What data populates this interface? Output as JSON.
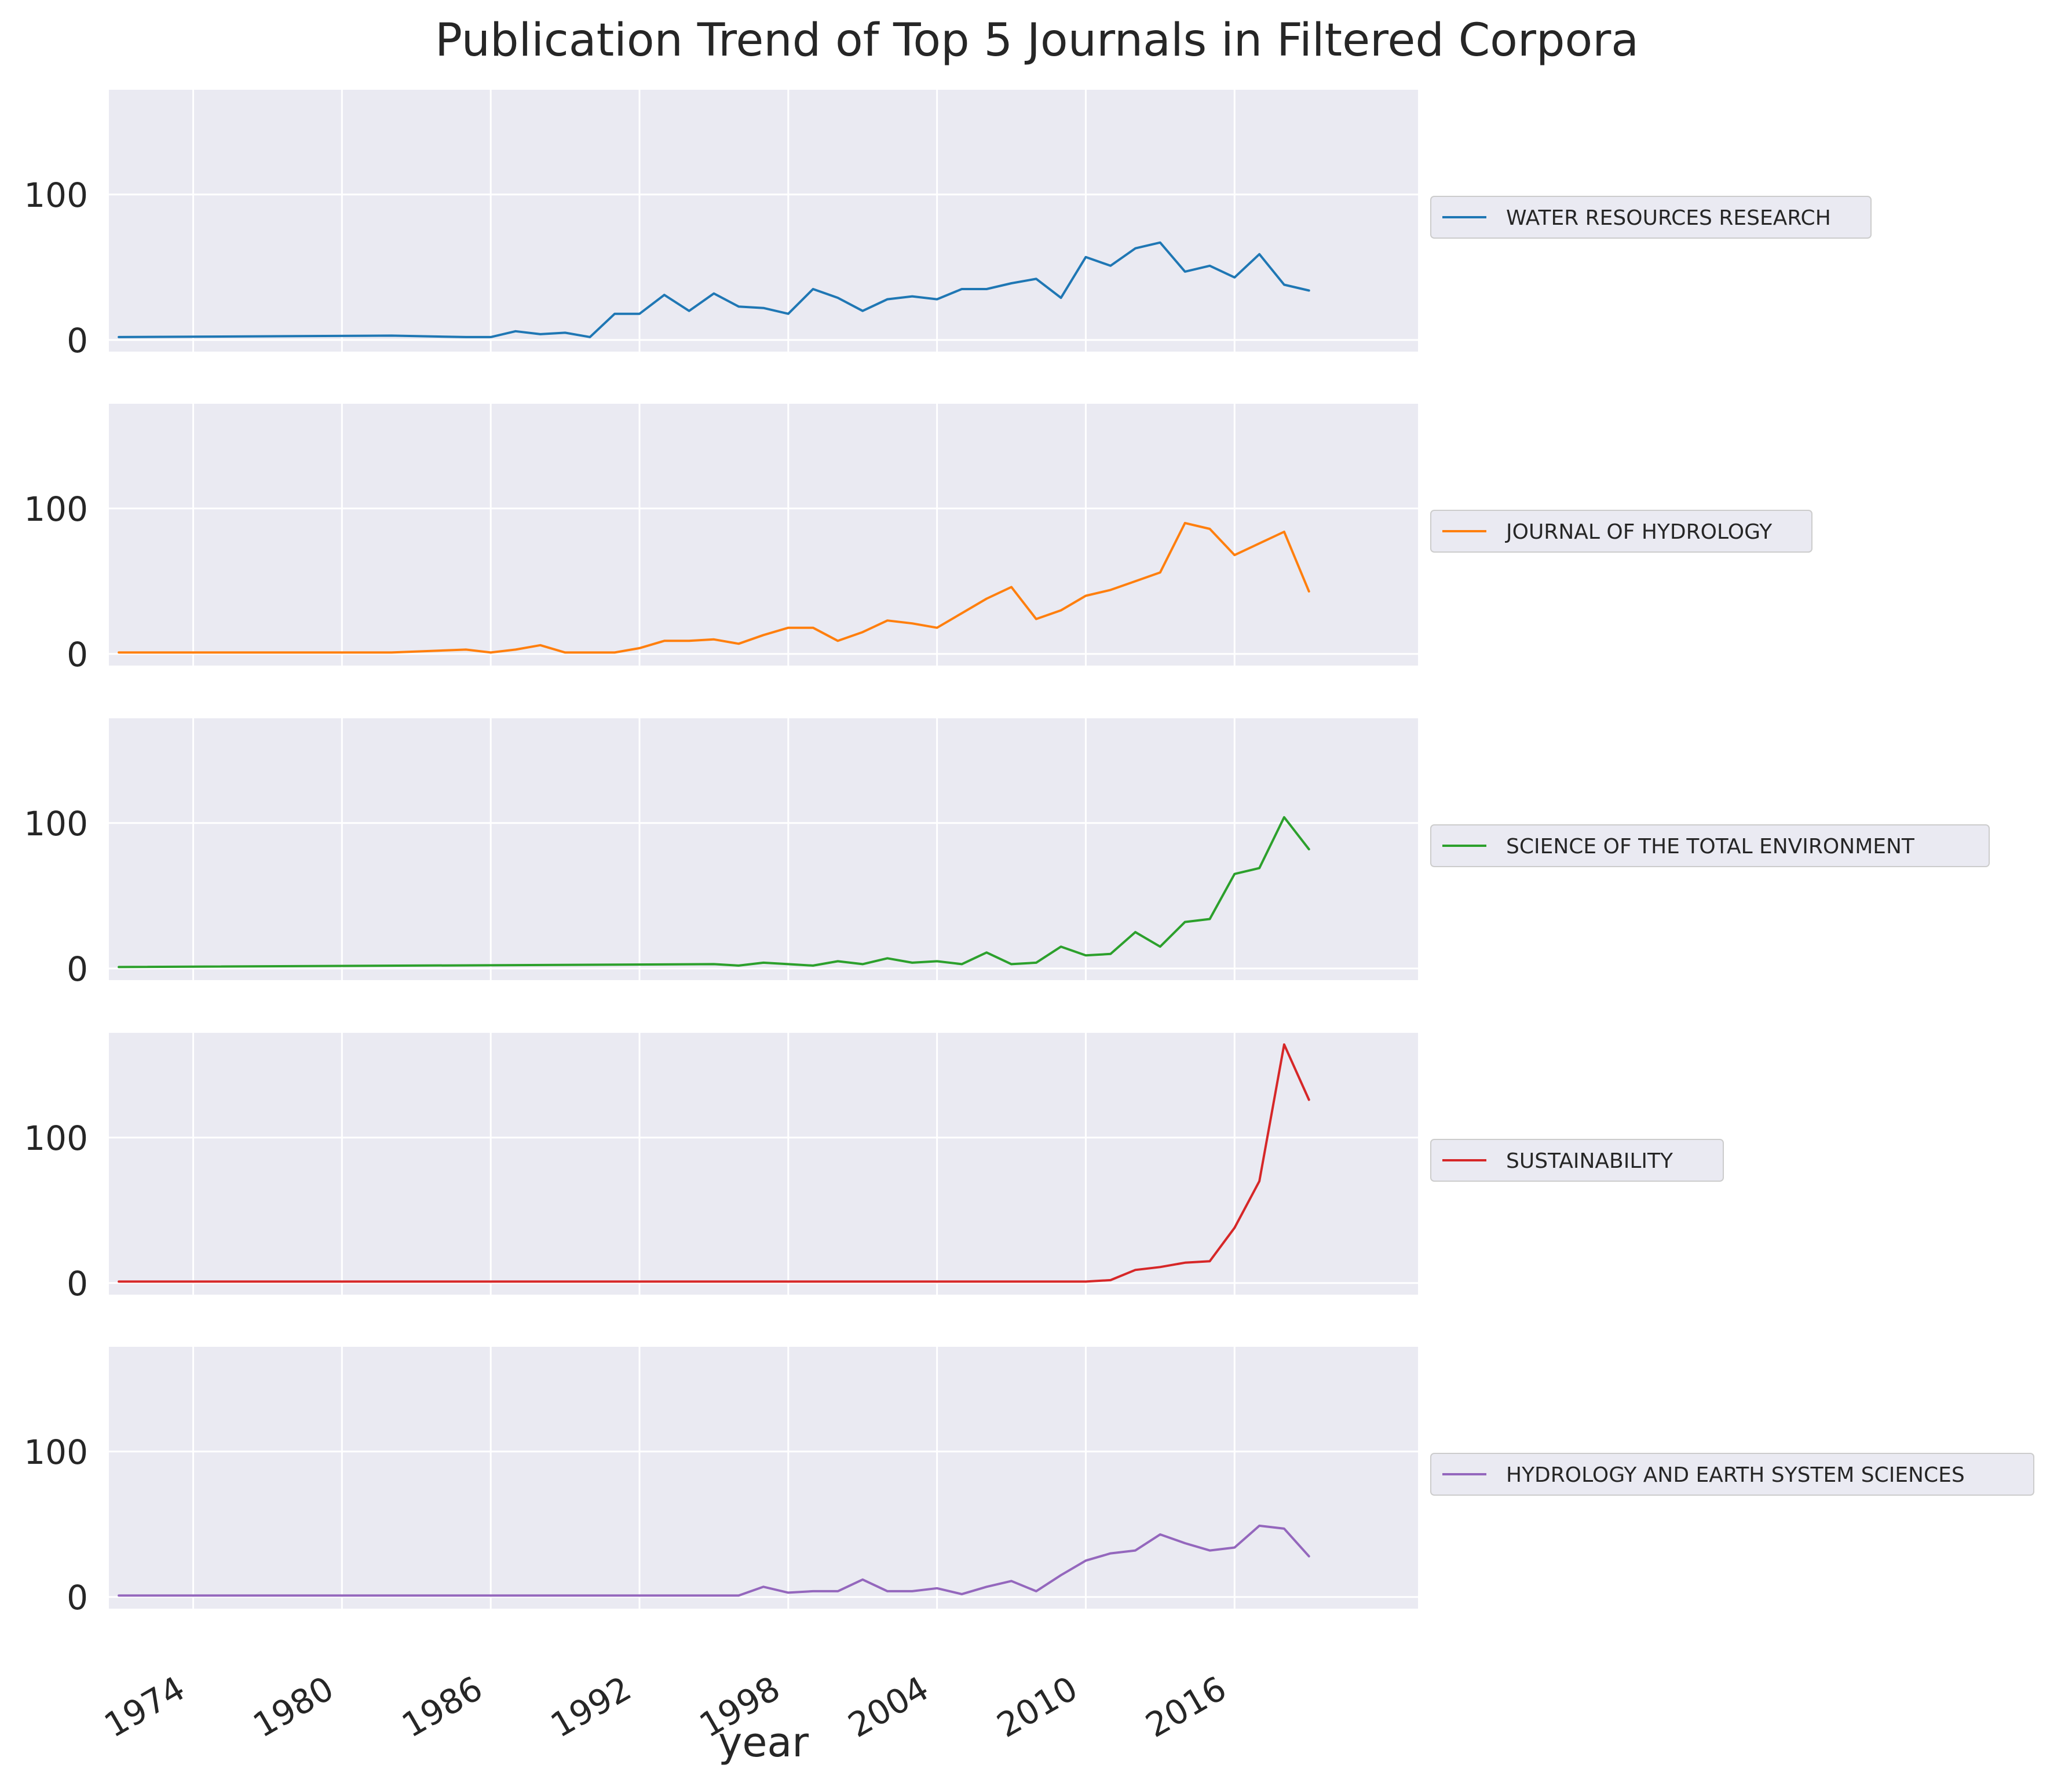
{
  "chart_data": {
    "type": "line",
    "title": "Publication Trend of Top 5 Journals in Filtered Corpora",
    "xlabel": "year",
    "ylabel": "",
    "xlim": [
      1970.6,
      2023.4
    ],
    "ylim": [
      -8,
      172
    ],
    "x_ticks": [
      1974,
      1980,
      1986,
      1992,
      1998,
      2004,
      2010,
      2016
    ],
    "y_ticks": [
      0,
      100
    ],
    "grid": true,
    "legend_position": "right",
    "series": [
      {
        "name": "WATER RESOURCES RESEARCH",
        "color": "#1f77b4",
        "x": [
          1971,
          1982,
          1985,
          1986,
          1987,
          1988,
          1989,
          1990,
          1991,
          1992,
          1993,
          1994,
          1995,
          1996,
          1997,
          1998,
          1999,
          2000,
          2001,
          2002,
          2003,
          2004,
          2005,
          2006,
          2007,
          2008,
          2009,
          2010,
          2011,
          2012,
          2013,
          2014,
          2015,
          2016,
          2017,
          2018,
          2019
        ],
        "values": [
          2,
          3,
          2,
          2,
          6,
          4,
          5,
          2,
          18,
          18,
          31,
          20,
          32,
          23,
          22,
          18,
          35,
          29,
          20,
          28,
          30,
          28,
          35,
          35,
          39,
          42,
          29,
          57,
          51,
          63,
          67,
          47,
          51,
          43,
          59,
          38,
          34
        ]
      },
      {
        "name": "JOURNAL OF HYDROLOGY",
        "color": "#ff7f0e",
        "x": [
          1971,
          1982,
          1985,
          1986,
          1987,
          1988,
          1989,
          1990,
          1991,
          1992,
          1993,
          1994,
          1995,
          1996,
          1997,
          1998,
          1999,
          2000,
          2001,
          2002,
          2003,
          2004,
          2005,
          2006,
          2007,
          2008,
          2009,
          2010,
          2011,
          2012,
          2013,
          2014,
          2015,
          2016,
          2017,
          2018,
          2019
        ],
        "values": [
          1,
          1,
          3,
          1,
          3,
          6,
          1,
          1,
          1,
          4,
          9,
          9,
          10,
          7,
          13,
          18,
          18,
          9,
          15,
          23,
          21,
          18,
          28,
          38,
          46,
          24,
          30,
          40,
          44,
          50,
          56,
          90,
          86,
          68,
          76,
          84,
          43
        ]
      },
      {
        "name": "SCIENCE OF THE TOTAL ENVIRONMENT",
        "color": "#2ca02c",
        "x": [
          1971,
          1995,
          1996,
          1997,
          1998,
          1999,
          2000,
          2001,
          2002,
          2003,
          2004,
          2005,
          2006,
          2007,
          2008,
          2009,
          2010,
          2011,
          2012,
          2013,
          2014,
          2015,
          2016,
          2017,
          2018,
          2019
        ],
        "values": [
          1,
          3,
          2,
          4,
          3,
          2,
          5,
          3,
          7,
          4,
          5,
          3,
          11,
          3,
          4,
          15,
          9,
          10,
          25,
          15,
          32,
          34,
          65,
          69,
          104,
          82
        ]
      },
      {
        "name": "SUSTAINABILITY",
        "color": "#d62728",
        "x": [
          1971,
          2010,
          2011,
          2012,
          2013,
          2014,
          2015,
          2016,
          2017,
          2018,
          2019
        ],
        "values": [
          1,
          1,
          2,
          9,
          11,
          14,
          15,
          38,
          70,
          164,
          126
        ]
      },
      {
        "name": "HYDROLOGY AND EARTH SYSTEM SCIENCES",
        "color": "#9467bd",
        "x": [
          1971,
          1996,
          1997,
          1998,
          1999,
          2000,
          2001,
          2002,
          2003,
          2004,
          2005,
          2006,
          2007,
          2008,
          2009,
          2010,
          2011,
          2012,
          2013,
          2014,
          2015,
          2016,
          2017,
          2018,
          2019
        ],
        "values": [
          1,
          1,
          7,
          3,
          4,
          4,
          12,
          4,
          4,
          6,
          2,
          7,
          11,
          4,
          15,
          25,
          30,
          32,
          43,
          37,
          32,
          34,
          49,
          47,
          28
        ]
      }
    ]
  }
}
